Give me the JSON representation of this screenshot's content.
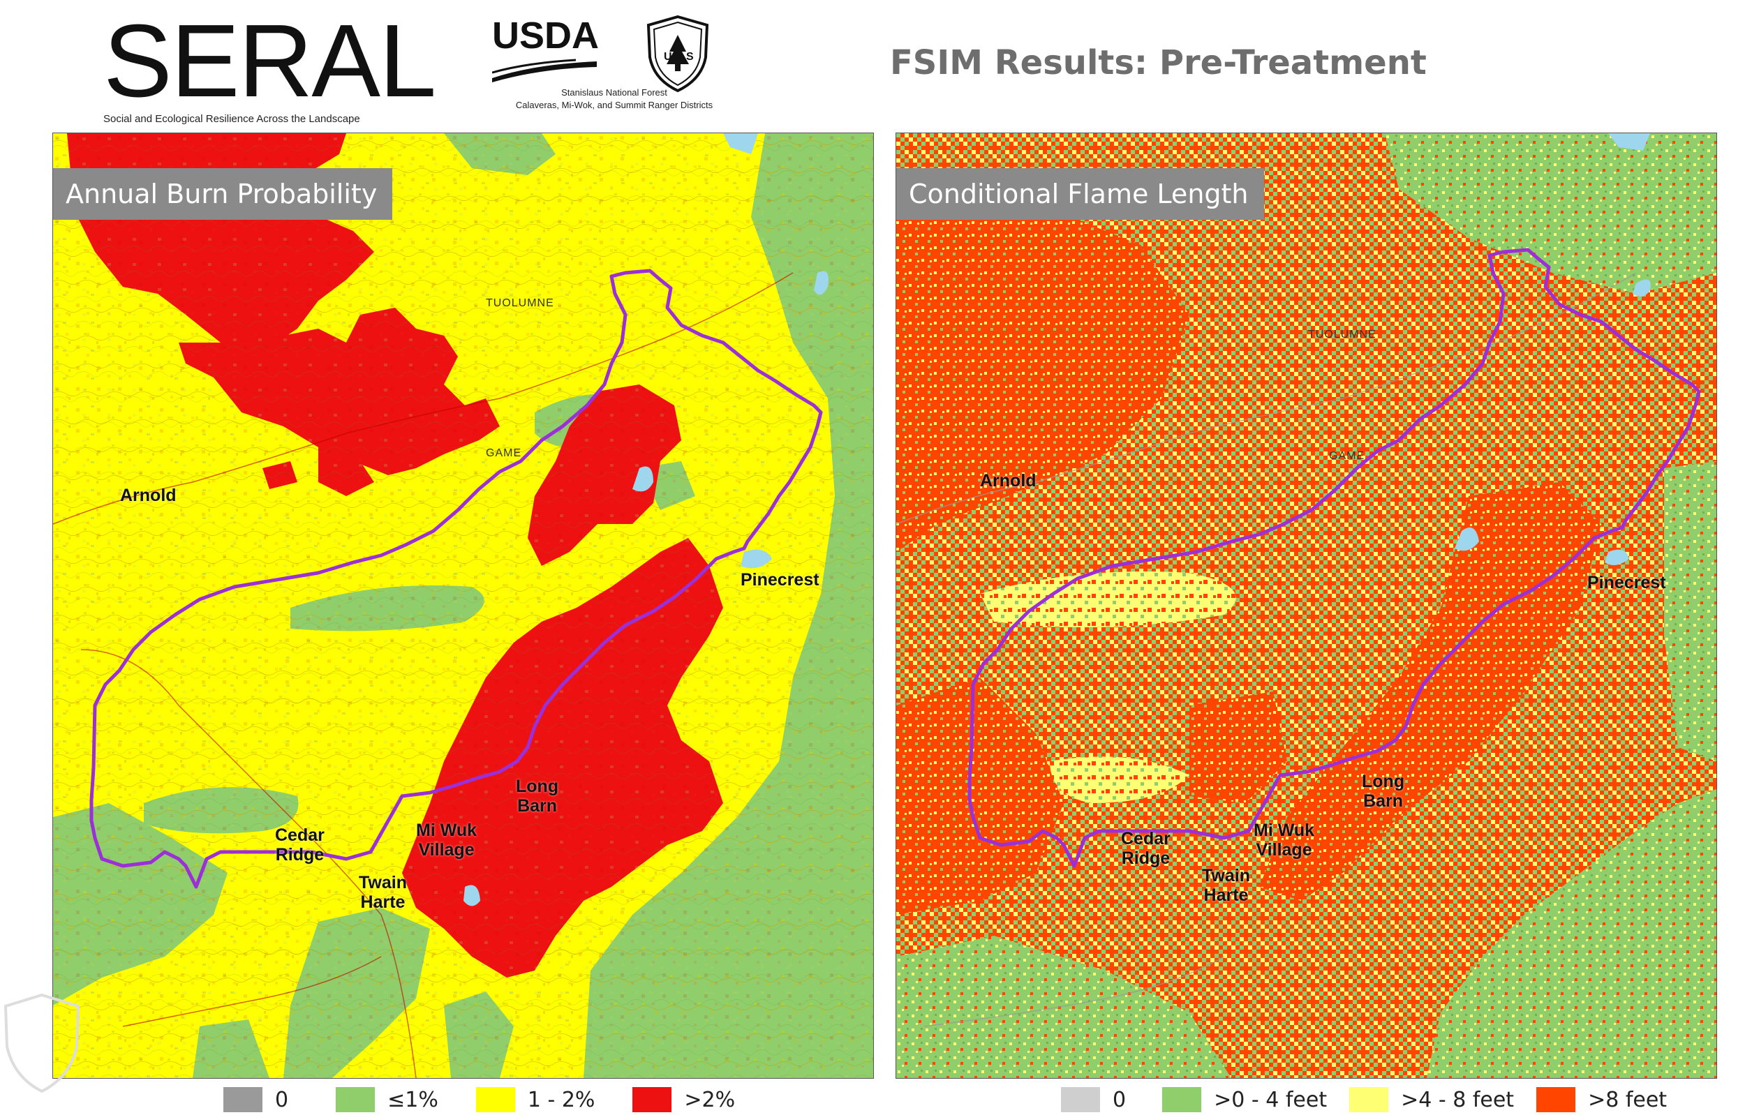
{
  "header": {
    "seral_title": "SERAL",
    "seral_subtitle": "Social and Ecological Resilience Across the Landscape",
    "usda_word": "USDA",
    "usda_line1": "Stanislaus National Forest",
    "usda_line2": "Calaveras, Mi-Wok, and Summit Ranger Districts",
    "page_title": "FSIM Results: Pre-Treatment"
  },
  "left_map": {
    "title": "Annual Burn Probability",
    "places": {
      "arnold": "Arnold",
      "pinecrest": "Pinecrest",
      "long_barn": "Long\nBarn",
      "mi_wuk": "Mi Wuk\nVillage",
      "cedar_ridge": "Cedar\nRidge",
      "twain_harte": "Twain\nHarte"
    },
    "map_labels": {
      "tuolumne": "TUOLUMNE",
      "game": "GAME"
    }
  },
  "right_map": {
    "title": "Conditional Flame Length",
    "places": {
      "arnold": "Arnold",
      "pinecrest": "Pinecrest",
      "long_barn": "Long\nBarn",
      "mi_wuk": "Mi Wuk\nVillage",
      "cedar_ridge": "Cedar\nRidge",
      "twain_harte": "Twain\nHarte"
    },
    "map_labels": {
      "tuolumne": "TUOLUMNE",
      "game": "GAME"
    }
  },
  "legend_left": [
    {
      "label": "0",
      "color": "#9a9a9a"
    },
    {
      "label": "≤1%",
      "color": "#8fce6a"
    },
    {
      "label": "1 - 2%",
      "color": "#ffff00"
    },
    {
      "label": ">2%",
      "color": "#ee1111"
    }
  ],
  "legend_right": [
    {
      "label": "0",
      "color": "#cfcfcf"
    },
    {
      "label": ">0 - 4 feet",
      "color": "#8fce6a"
    },
    {
      "label": ">4 - 8 feet",
      "color": "#ffff73"
    },
    {
      "label": ">8 feet",
      "color": "#ff4500"
    }
  ],
  "colors": {
    "boundary": "#9b30d9",
    "panel_title_bg": "#8a8a8a",
    "title_gray": "#6e6e6e"
  }
}
